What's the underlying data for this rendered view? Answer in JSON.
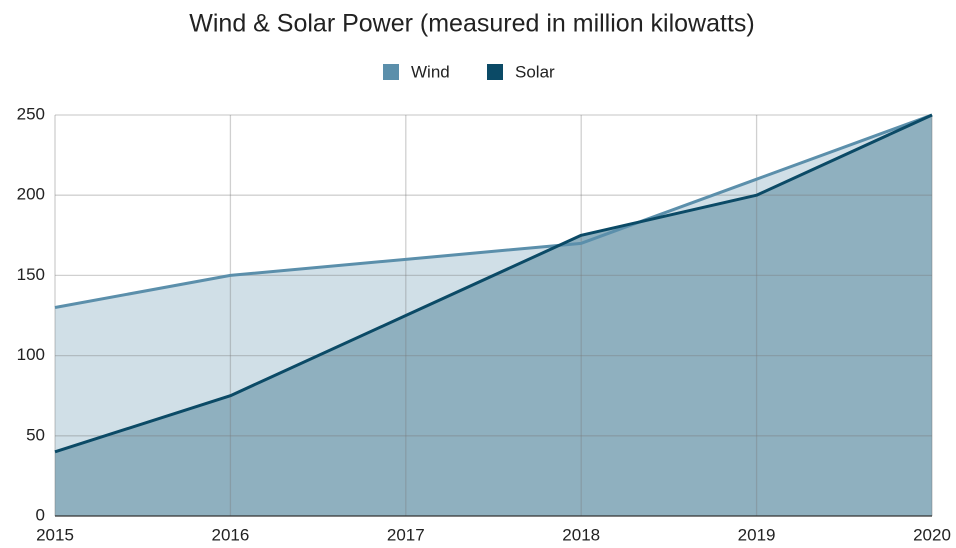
{
  "chart_data": {
    "type": "area",
    "title": "Wind & Solar Power (measured in million kilowatts)",
    "x": [
      2015,
      2016,
      2017,
      2018,
      2019,
      2020
    ],
    "series": [
      {
        "name": "Wind",
        "color": "#5b8fab",
        "fill": "#d0dfe7",
        "values": [
          130,
          150,
          160,
          170,
          210,
          250
        ]
      },
      {
        "name": "Solar",
        "color": "#0b4a66",
        "fill": "#8fb0bf",
        "values": [
          40,
          75,
          125,
          175,
          200,
          250
        ]
      }
    ],
    "xlim": [
      2015,
      2020
    ],
    "xticks": [
      2015,
      2016,
      2017,
      2018,
      2019,
      2020
    ],
    "ylim": [
      0,
      250
    ],
    "yticks": [
      0,
      50,
      100,
      150,
      200,
      250
    ],
    "grid": true,
    "legend": "top"
  }
}
